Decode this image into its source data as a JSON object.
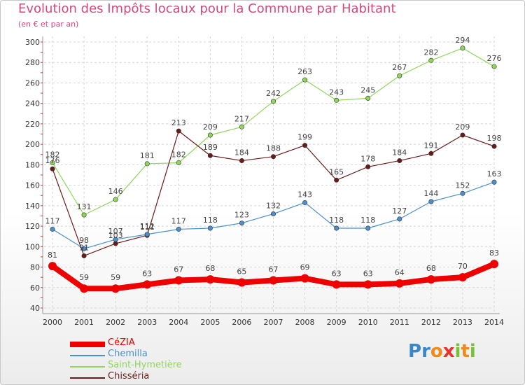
{
  "title": "Evolution des Impôts locaux pour la Commune par Habitant",
  "subtitle": "(en € et par an)",
  "logo": {
    "letters": [
      "P",
      "r",
      "o",
      "x",
      "i",
      "t",
      "i"
    ],
    "colors": [
      "#3a87c8",
      "#3a87c8",
      "#f08a1c",
      "#e8322c",
      "#7bbf3a",
      "#f08a1c",
      "#7bbf3a"
    ]
  },
  "chart_data": {
    "type": "line",
    "x": [
      "2000",
      "2001",
      "2002",
      "2003",
      "2004",
      "2005",
      "2006",
      "2007",
      "2008",
      "2009",
      "2010",
      "2011",
      "2012",
      "2013",
      "2014"
    ],
    "ylim": [
      40,
      300
    ],
    "yticks": [
      40,
      60,
      80,
      100,
      120,
      140,
      160,
      180,
      200,
      220,
      240,
      260,
      280,
      300
    ],
    "grid": true,
    "legend_position": "bottom-left",
    "series": [
      {
        "name": "CéZIA",
        "color": "#ee0000",
        "values": [
          81,
          59,
          59,
          63,
          67,
          68,
          65,
          67,
          69,
          63,
          63,
          64,
          68,
          70,
          83
        ]
      },
      {
        "name": "Chemilla",
        "color": "#4a8fd0",
        "values": [
          117,
          98,
          107,
          112,
          117,
          118,
          123,
          132,
          143,
          118,
          118,
          127,
          144,
          152,
          163
        ]
      },
      {
        "name": "Saint-Hymetière",
        "color": "#8fd65a",
        "values": [
          182,
          131,
          146,
          181,
          182,
          209,
          217,
          242,
          263,
          243,
          245,
          267,
          282,
          294,
          276
        ]
      },
      {
        "name": "Chisséria",
        "color": "#6b1a1a",
        "values": [
          176,
          91,
          103,
          111,
          213,
          189,
          184,
          188,
          199,
          165,
          178,
          184,
          191,
          209,
          198
        ]
      }
    ]
  }
}
